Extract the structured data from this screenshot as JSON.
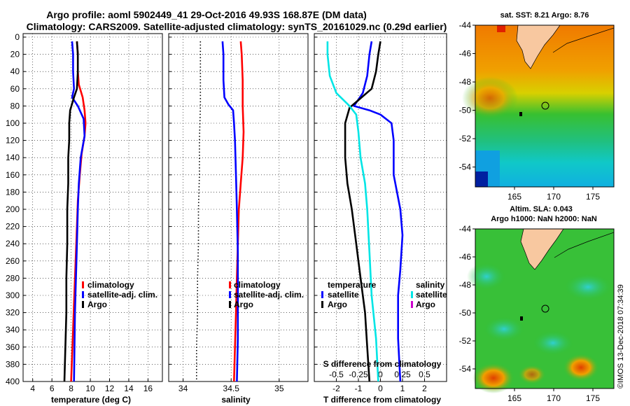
{
  "title": {
    "line1": "Argo profile: aoml 5902449_41 29-Oct-2016 49.93S 168.87E (DM data)",
    "line2": "Climatology: CARS2009. Satellite-adjusted climatology: synTS_20161029.nc (0.29d earlier)"
  },
  "colors": {
    "climatology": "#ff0000",
    "satellite": "#0000ff",
    "argo": "#000000",
    "sal_satellite": "#00e5e5",
    "sal_argo": "#cc00cc"
  },
  "depth_axis": {
    "ticks": [
      "0",
      "20",
      "40",
      "60",
      "80",
      "100",
      "120",
      "140",
      "160",
      "180",
      "200",
      "220",
      "240",
      "260",
      "280",
      "300",
      "320",
      "340",
      "360",
      "380",
      "400"
    ]
  },
  "chart_data": [
    {
      "type": "line",
      "name": "temperature",
      "xlabel": "temperature (deg C)",
      "xlim": [
        3,
        17.5
      ],
      "ylim": [
        0,
        400
      ],
      "xticks": [
        "4",
        "6",
        "8",
        "10",
        "12",
        "14",
        "16"
      ],
      "xtick_values": [
        4,
        6,
        8,
        10,
        12,
        14,
        16
      ],
      "legend": [
        "climatology",
        "satellite-adj. clim.",
        "Argo"
      ],
      "series": [
        {
          "name": "climatology",
          "color_key": "climatology",
          "points": [
            [
              8.6,
              5
            ],
            [
              8.7,
              20
            ],
            [
              8.7,
              40
            ],
            [
              8.8,
              55
            ],
            [
              9.2,
              70
            ],
            [
              9.4,
              85
            ],
            [
              9.5,
              100
            ],
            [
              9.4,
              115
            ],
            [
              9.1,
              135
            ],
            [
              8.9,
              160
            ],
            [
              8.7,
              190
            ],
            [
              8.6,
              220
            ],
            [
              8.5,
              250
            ],
            [
              8.4,
              280
            ],
            [
              8.3,
              310
            ],
            [
              8.2,
              340
            ],
            [
              8.1,
              370
            ],
            [
              8.0,
              400
            ]
          ]
        },
        {
          "name": "satellite-adj. clim.",
          "color_key": "satellite",
          "points": [
            [
              8.1,
              5
            ],
            [
              8.2,
              20
            ],
            [
              8.2,
              40
            ],
            [
              8.3,
              60
            ],
            [
              8.1,
              70
            ],
            [
              8.7,
              80
            ],
            [
              9.3,
              95
            ],
            [
              9.4,
              115
            ],
            [
              9.0,
              140
            ],
            [
              8.8,
              170
            ],
            [
              8.7,
              200
            ],
            [
              8.6,
              240
            ],
            [
              8.5,
              280
            ],
            [
              8.4,
              320
            ],
            [
              8.35,
              360
            ],
            [
              8.3,
              400
            ]
          ]
        },
        {
          "name": "Argo",
          "color_key": "argo",
          "points": [
            [
              8.6,
              5
            ],
            [
              8.7,
              20
            ],
            [
              8.7,
              40
            ],
            [
              8.6,
              60
            ],
            [
              8.3,
              70
            ],
            [
              7.9,
              85
            ],
            [
              7.8,
              100
            ],
            [
              7.8,
              120
            ],
            [
              7.7,
              140
            ],
            [
              7.7,
              170
            ],
            [
              7.6,
              200
            ],
            [
              7.6,
              240
            ],
            [
              7.5,
              280
            ],
            [
              7.5,
              320
            ],
            [
              7.4,
              360
            ],
            [
              7.3,
              400
            ]
          ]
        }
      ]
    },
    {
      "type": "line",
      "name": "salinity",
      "xlabel": "salinity",
      "xlim": [
        33.85,
        35.3
      ],
      "ylim": [
        0,
        400
      ],
      "xticks": [
        "34",
        "34.5",
        "35"
      ],
      "xtick_values": [
        34,
        34.5,
        35
      ],
      "legend": [
        "climatology",
        "satellite-adj. clim.",
        "Argo"
      ],
      "series": [
        {
          "name": "climatology",
          "color_key": "climatology",
          "points": [
            [
              34.6,
              5
            ],
            [
              34.61,
              20
            ],
            [
              34.62,
              50
            ],
            [
              34.62,
              80
            ],
            [
              34.63,
              110
            ],
            [
              34.62,
              140
            ],
            [
              34.6,
              170
            ],
            [
              34.58,
              200
            ],
            [
              34.57,
              240
            ],
            [
              34.56,
              280
            ],
            [
              34.55,
              320
            ],
            [
              34.54,
              360
            ],
            [
              34.53,
              400
            ]
          ]
        },
        {
          "name": "satellite-adj. clim.",
          "color_key": "satellite",
          "points": [
            [
              34.41,
              5
            ],
            [
              34.42,
              20
            ],
            [
              34.42,
              50
            ],
            [
              34.43,
              70
            ],
            [
              34.47,
              78
            ],
            [
              34.52,
              85
            ],
            [
              34.53,
              100
            ],
            [
              34.54,
              120
            ],
            [
              34.55,
              160
            ],
            [
              34.56,
              200
            ],
            [
              34.57,
              250
            ],
            [
              34.57,
              300
            ],
            [
              34.57,
              350
            ],
            [
              34.56,
              400
            ]
          ]
        },
        {
          "name": "Argo",
          "color_key": "argo",
          "dotted": true,
          "points": [
            [
              34.18,
              5
            ],
            [
              34.18,
              40
            ],
            [
              34.18,
              80
            ],
            [
              34.17,
              120
            ],
            [
              34.17,
              160
            ],
            [
              34.16,
              200
            ],
            [
              34.16,
              240
            ],
            [
              34.15,
              280
            ],
            [
              34.15,
              320
            ],
            [
              34.14,
              360
            ],
            [
              34.14,
              400
            ]
          ]
        }
      ]
    },
    {
      "type": "line",
      "name": "difference",
      "xlabel": "T difference from climatology",
      "xlabel_top": "S difference from climatology",
      "xlim": [
        -3,
        3
      ],
      "ylim": [
        0,
        400
      ],
      "xticks": [
        "-2",
        "-1",
        "0",
        "1",
        "2"
      ],
      "xtick_values": [
        -2,
        -1,
        0,
        1,
        2
      ],
      "sticks": [
        "-0.5",
        "-0.25",
        "0",
        "0.25",
        "0.5"
      ],
      "stick_values": [
        -2,
        -1,
        0,
        1,
        2
      ],
      "legend_temperature": {
        "title": "temperature",
        "items": [
          "satellite",
          "Argo"
        ]
      },
      "legend_salinity": {
        "title": "salinity",
        "items": [
          "satellite",
          "Argo"
        ]
      },
      "series": [
        {
          "name": "T satellite",
          "color_key": "satellite",
          "points": [
            [
              -0.4,
              5
            ],
            [
              -0.5,
              20
            ],
            [
              -0.6,
              45
            ],
            [
              -0.8,
              65
            ],
            [
              -1.2,
              80
            ],
            [
              -0.5,
              85
            ],
            [
              0.0,
              90
            ],
            [
              0.5,
              100
            ],
            [
              0.6,
              120
            ],
            [
              0.6,
              160
            ],
            [
              0.9,
              200
            ],
            [
              1.0,
              230
            ],
            [
              0.9,
              270
            ],
            [
              0.8,
              300
            ],
            [
              0.8,
              350
            ],
            [
              0.9,
              400
            ]
          ]
        },
        {
          "name": "T Argo",
          "color_key": "argo",
          "points": [
            [
              0.0,
              5
            ],
            [
              -0.1,
              20
            ],
            [
              -0.2,
              40
            ],
            [
              -0.4,
              60
            ],
            [
              -1.4,
              82
            ],
            [
              -1.6,
              100
            ],
            [
              -1.6,
              140
            ],
            [
              -1.5,
              170
            ],
            [
              -1.3,
              200
            ],
            [
              -1.1,
              240
            ],
            [
              -0.9,
              280
            ],
            [
              -0.7,
              320
            ],
            [
              -0.6,
              360
            ],
            [
              -0.5,
              400
            ]
          ]
        },
        {
          "name": "S satellite",
          "color_key": "sal_satellite",
          "points": [
            [
              -2.4,
              5
            ],
            [
              -2.4,
              20
            ],
            [
              -2.3,
              45
            ],
            [
              -2.0,
              65
            ],
            [
              -1.4,
              80
            ],
            [
              -1.1,
              90
            ],
            [
              -1.0,
              110
            ],
            [
              -0.9,
              140
            ],
            [
              -0.7,
              170
            ],
            [
              -0.6,
              200
            ],
            [
              -0.5,
              250
            ],
            [
              -0.4,
              300
            ],
            [
              -0.2,
              350
            ],
            [
              -0.1,
              400
            ]
          ]
        }
      ]
    }
  ],
  "map_sst": {
    "label": "sat. SST: 8.21 Argo: 8.76",
    "yticks": [
      "-44",
      "-46",
      "-48",
      "-50",
      "-52",
      "-54"
    ],
    "xticks": [
      "165",
      "170",
      "175"
    ]
  },
  "map_sla": {
    "label1": "Altim. SLA: 0.043",
    "label2": "Argo h1000: NaN h2000: NaN",
    "yticks": [
      "-44",
      "-46",
      "-48",
      "-50",
      "-52",
      "-54"
    ],
    "xticks": [
      "165",
      "170",
      "175"
    ]
  },
  "stamp": "©IMOS 13-Dec-2018 07:34:39"
}
